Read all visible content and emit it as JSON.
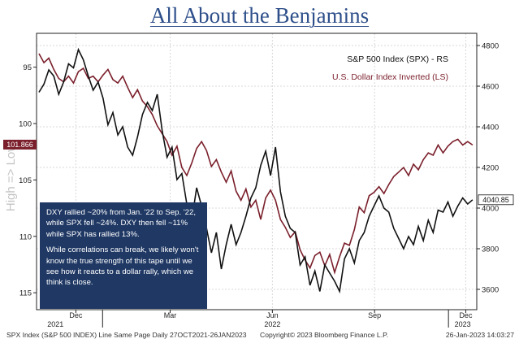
{
  "title": "All About the Benjamins",
  "chart_data": {
    "type": "line",
    "legend": {
      "placement": "top-right",
      "entries": [
        {
          "label": "S&P 500 Index (SPX) - RS",
          "color": "#111111"
        },
        {
          "label": "U.S. Dollar Index Inverted (LS)",
          "color": "#7a1f2b"
        }
      ]
    },
    "left_axis": {
      "label": "High => Low",
      "ticks": [
        "95",
        "100",
        "105",
        "110",
        "115"
      ],
      "range": [
        92,
        116.5
      ],
      "inverted": true
    },
    "right_axis": {
      "ticks": [
        "4800",
        "4600",
        "4400",
        "4200",
        "4000",
        "3800",
        "3600"
      ],
      "range": [
        3500,
        4860
      ]
    },
    "x_axis": {
      "month_ticks": [
        "Dec",
        "Mar",
        "Jun",
        "Sep",
        "Dec"
      ],
      "year_labels": [
        "2021",
        "2022",
        "2023"
      ]
    },
    "last_values": {
      "dxy": "101.866",
      "spx": "4040.85"
    },
    "series": [
      {
        "name": "U.S. Dollar Index Inverted (LS)",
        "axis": "left",
        "color": "#7a1f2b",
        "x": [
          0,
          3,
          6,
          9,
          12,
          15,
          18,
          21,
          24,
          27,
          30,
          33,
          36,
          39,
          42,
          45,
          48,
          51,
          54,
          57,
          60,
          63,
          66,
          69,
          72,
          75,
          78,
          81,
          84,
          87,
          90,
          93,
          96,
          99,
          102,
          105,
          108,
          111,
          114,
          117,
          120,
          123,
          126,
          129,
          132,
          135,
          138,
          141,
          144,
          147,
          150,
          153,
          156,
          159,
          162,
          165,
          168,
          171,
          174,
          177,
          180,
          183,
          186,
          189,
          192,
          195,
          198,
          201,
          204,
          207,
          210,
          213,
          216,
          219,
          222,
          225,
          228,
          231,
          234,
          237,
          240,
          243,
          246,
          249,
          252,
          255,
          258,
          261,
          264
        ],
        "y": [
          93.8,
          94.6,
          94.2,
          95.2,
          96.0,
          96.3,
          95.8,
          96.4,
          95.4,
          95.1,
          96.0,
          95.8,
          96.3,
          95.7,
          95.2,
          96.1,
          96.4,
          95.8,
          96.8,
          97.7,
          97.0,
          98.0,
          98.5,
          99.2,
          100.2,
          100.9,
          101.6,
          102.8,
          102.0,
          103.9,
          104.6,
          103.5,
          102.2,
          101.6,
          102.4,
          103.8,
          103.2,
          104.3,
          105.2,
          104.2,
          106.0,
          106.8,
          105.8,
          107.4,
          106.8,
          108.5,
          106.6,
          105.9,
          106.8,
          108.5,
          109.2,
          110.1,
          109.6,
          111.2,
          112.1,
          112.8,
          111.7,
          111.4,
          112.6,
          111.6,
          113.2,
          111.8,
          110.6,
          110.8,
          109.4,
          107.4,
          107.9,
          106.4,
          106.1,
          105.6,
          106.2,
          105.4,
          104.7,
          104.3,
          103.9,
          104.6,
          103.6,
          104.1,
          103.2,
          102.6,
          102.8,
          101.9,
          102.6,
          102.0,
          101.6,
          101.4,
          101.9,
          101.6,
          101.9
        ]
      },
      {
        "name": "S&P 500 Index (SPX) - RS",
        "axis": "right",
        "color": "#111111",
        "x": [
          0,
          3,
          6,
          9,
          12,
          15,
          18,
          21,
          24,
          27,
          30,
          33,
          36,
          39,
          42,
          45,
          48,
          51,
          54,
          57,
          60,
          63,
          66,
          69,
          72,
          75,
          78,
          81,
          84,
          87,
          90,
          93,
          96,
          99,
          102,
          105,
          108,
          111,
          114,
          117,
          120,
          123,
          126,
          129,
          132,
          135,
          138,
          141,
          144,
          147,
          150,
          153,
          156,
          159,
          162,
          165,
          168,
          171,
          174,
          177,
          180,
          183,
          186,
          189,
          192,
          195,
          198,
          201,
          204,
          207,
          210,
          213,
          216,
          219,
          222,
          225,
          228,
          231,
          234,
          237,
          240,
          243,
          246,
          249,
          252,
          255,
          258,
          261,
          264
        ],
        "y": [
          4570,
          4610,
          4680,
          4650,
          4560,
          4620,
          4710,
          4690,
          4780,
          4730,
          4650,
          4580,
          4620,
          4540,
          4410,
          4470,
          4360,
          4400,
          4300,
          4260,
          4350,
          4460,
          4520,
          4480,
          4560,
          4380,
          4250,
          4300,
          4140,
          4170,
          4020,
          3940,
          4100,
          4010,
          3900,
          3780,
          3880,
          3700,
          3820,
          3920,
          3820,
          3880,
          3960,
          4050,
          4100,
          4210,
          4280,
          4160,
          4300,
          4080,
          3960,
          3900,
          3880,
          3720,
          3760,
          3620,
          3690,
          3590,
          3720,
          3680,
          3640,
          3590,
          3750,
          3800,
          3730,
          3840,
          3880,
          3960,
          4010,
          4060,
          4000,
          3980,
          3900,
          3850,
          3800,
          3860,
          3820,
          3910,
          3840,
          3940,
          3880,
          3990,
          3980,
          4030,
          3960,
          4010,
          4050,
          4020,
          4040.85
        ]
      }
    ]
  },
  "annotation": {
    "paragraph1": "DXY rallied ~20% from Jan. '22 to Sep. '22, while SPX fell ~24%. DXY then fell ~11% while SPX has rallied 13%.",
    "paragraph2": "While correlations can break, we likely won't know the true strength of this tape until we see how it reacts to a dollar rally, which we think is close."
  },
  "footer": {
    "left": "SPX Index (S&P 500 INDEX) Line Same Page  Daily 27OCT2021-26JAN2023",
    "center": "Copyright© 2023 Bloomberg Finance L.P.",
    "right": "26-Jan-2023 14:03:27"
  }
}
